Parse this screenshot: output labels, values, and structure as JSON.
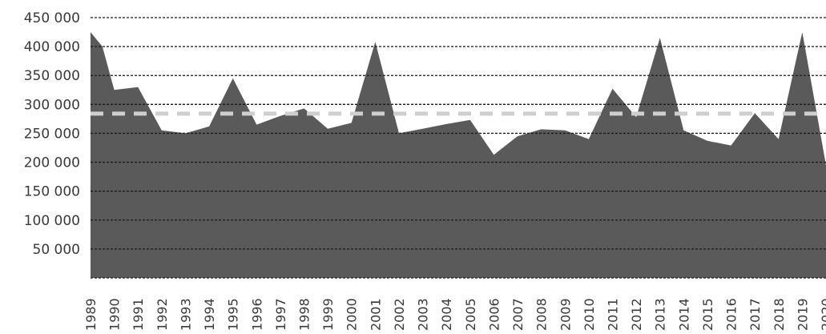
{
  "chart_data": {
    "type": "area",
    "categories": [
      "1989",
      "1990",
      "1991",
      "1992",
      "1993",
      "1994",
      "1995",
      "1996",
      "1997",
      "1998",
      "1999",
      "2000",
      "2001",
      "2002",
      "2003",
      "2004",
      "2005",
      "2006",
      "2007",
      "2008",
      "2009",
      "2010",
      "2011",
      "2012",
      "2013",
      "2014",
      "2015",
      "2016",
      "2017",
      "2018",
      "2019",
      "2020"
    ],
    "x": [
      1989,
      1989.5,
      1990,
      1991,
      1992,
      1993,
      1994,
      1995,
      1996,
      1997,
      1998,
      1999,
      2000,
      2001,
      2002,
      2003,
      2004,
      2005,
      2006,
      2007,
      2008,
      2009,
      2010,
      2011,
      2012,
      2013,
      2014,
      2015,
      2016,
      2017,
      2018,
      2019,
      2020
    ],
    "values": [
      425000,
      400000,
      325000,
      330000,
      255000,
      250000,
      262000,
      345000,
      265000,
      280000,
      293000,
      258000,
      268000,
      408000,
      250000,
      258000,
      266000,
      273000,
      213000,
      245000,
      257000,
      255000,
      240000,
      327000,
      278000,
      415000,
      255000,
      237000,
      229000,
      285000,
      240000,
      425000,
      195000
    ],
    "average": 284000,
    "ylim": [
      0,
      450000
    ],
    "yticks": [
      50000,
      100000,
      150000,
      200000,
      250000,
      300000,
      350000,
      400000,
      450000
    ],
    "ytick_labels": [
      "50 000",
      "100 000",
      "150 000",
      "200 000",
      "250 000",
      "300 000",
      "350 000",
      "400 000",
      "450 000"
    ],
    "grid": true,
    "colors": {
      "area": "#5a5a5a",
      "grid": "#1a1a1a",
      "average_line": "#cfcfcf",
      "text": "#3a3a3a"
    }
  }
}
